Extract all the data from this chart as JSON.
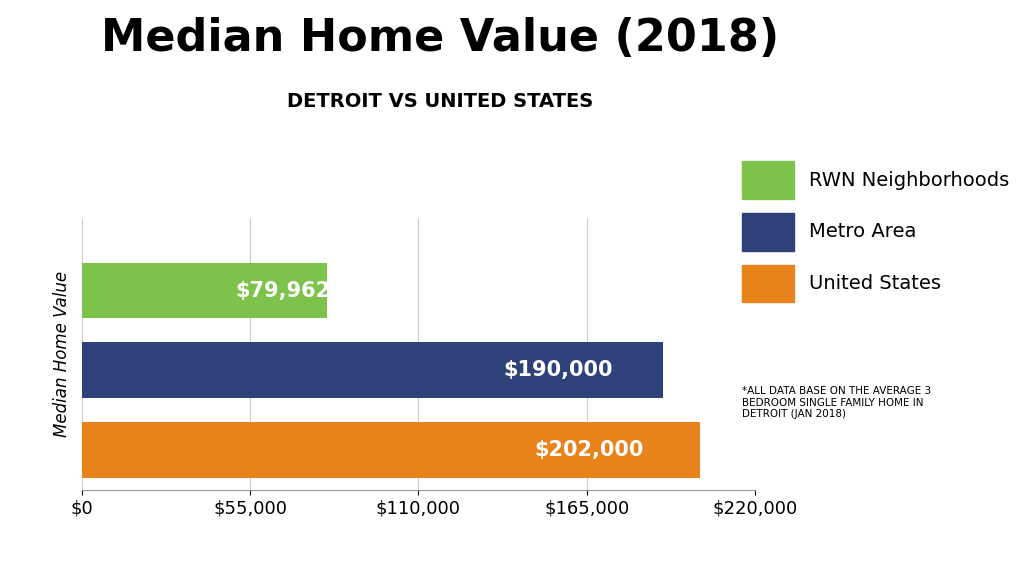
{
  "title": "Median Home Value (2018)",
  "subtitle": "DETROIT VS UNITED STATES",
  "ylabel": "Median Home Value",
  "categories": [
    "RWN Neighborhoods",
    "Metro Area",
    "United States"
  ],
  "values": [
    79962,
    190000,
    202000
  ],
  "colors": [
    "#7DC24B",
    "#2E4178",
    "#E8821A"
  ],
  "bar_labels": [
    "$79,962",
    "$190,000",
    "$202,000"
  ],
  "xlim": [
    0,
    220000
  ],
  "xticks": [
    0,
    55000,
    110000,
    165000,
    220000
  ],
  "xtick_labels": [
    "$0",
    "$55,000",
    "$110,000",
    "$165,000",
    "$220,000"
  ],
  "legend_labels": [
    "RWN Neighborhoods",
    "Metro Area",
    "United States"
  ],
  "footnote": "*ALL DATA BASE ON THE AVERAGE 3\nBEDROOM SINGLE FAMILY HOME IN\nDETROIT (JAN 2018)",
  "bg_color": "#FFFFFF",
  "bar_label_fontsize": 15,
  "bar_label_color": "white",
  "title_fontsize": 32,
  "subtitle_fontsize": 14,
  "ylabel_fontsize": 12,
  "legend_fontsize": 14,
  "xtick_fontsize": 13
}
